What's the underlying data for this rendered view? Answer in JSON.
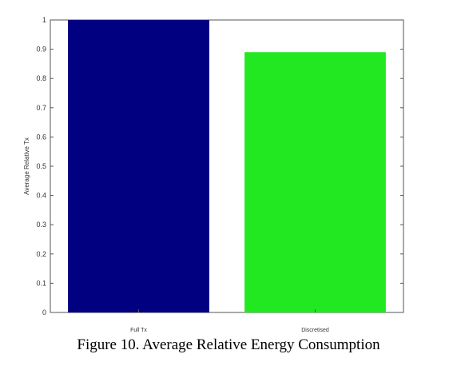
{
  "caption": "Figure 10. Average Relative Energy Consumption",
  "chart_data": {
    "type": "bar",
    "categories": [
      "Full Tx",
      "Discretised"
    ],
    "values": [
      1.0,
      0.89
    ],
    "bar_colors": [
      "#000080",
      "#22e822"
    ],
    "title": "",
    "xlabel": "",
    "ylabel": "Average Relative Tx",
    "ylim": [
      0,
      1
    ],
    "yticks": [
      "0",
      "0.1",
      "0.2",
      "0.3",
      "0.4",
      "0.5",
      "0.6",
      "0.7",
      "0.8",
      "0.9",
      "1"
    ],
    "grid": false,
    "legend": "none"
  }
}
